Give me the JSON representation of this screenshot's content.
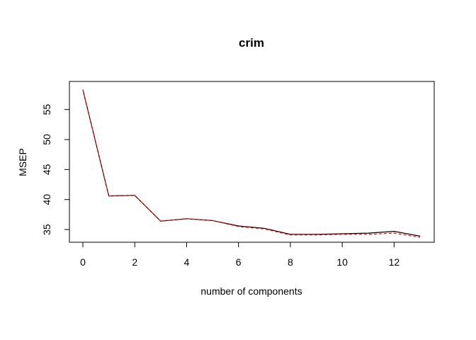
{
  "chart_data": {
    "type": "line",
    "title": "crim",
    "xlabel": "number of components",
    "ylabel": "MSEP",
    "xlim": [
      0,
      13
    ],
    "ylim": [
      33,
      58.5
    ],
    "xticks": [
      0,
      2,
      4,
      6,
      8,
      10,
      12
    ],
    "yticks": [
      35,
      40,
      45,
      50,
      55
    ],
    "grid": false,
    "legend": "none",
    "x": [
      0,
      1,
      2,
      3,
      4,
      5,
      6,
      7,
      8,
      9,
      10,
      11,
      12,
      13
    ],
    "series": [
      {
        "color": "#000000",
        "style": "solid",
        "values": [
          58.3,
          40.6,
          40.7,
          36.4,
          36.8,
          36.5,
          35.6,
          35.2,
          34.2,
          34.2,
          34.3,
          34.4,
          34.7,
          33.9
        ]
      },
      {
        "color": "#ff0000",
        "style": "dashed",
        "values": [
          58.3,
          40.6,
          40.7,
          36.4,
          36.8,
          36.5,
          35.5,
          35.1,
          34.1,
          34.1,
          34.2,
          34.2,
          34.4,
          33.7
        ]
      }
    ]
  }
}
